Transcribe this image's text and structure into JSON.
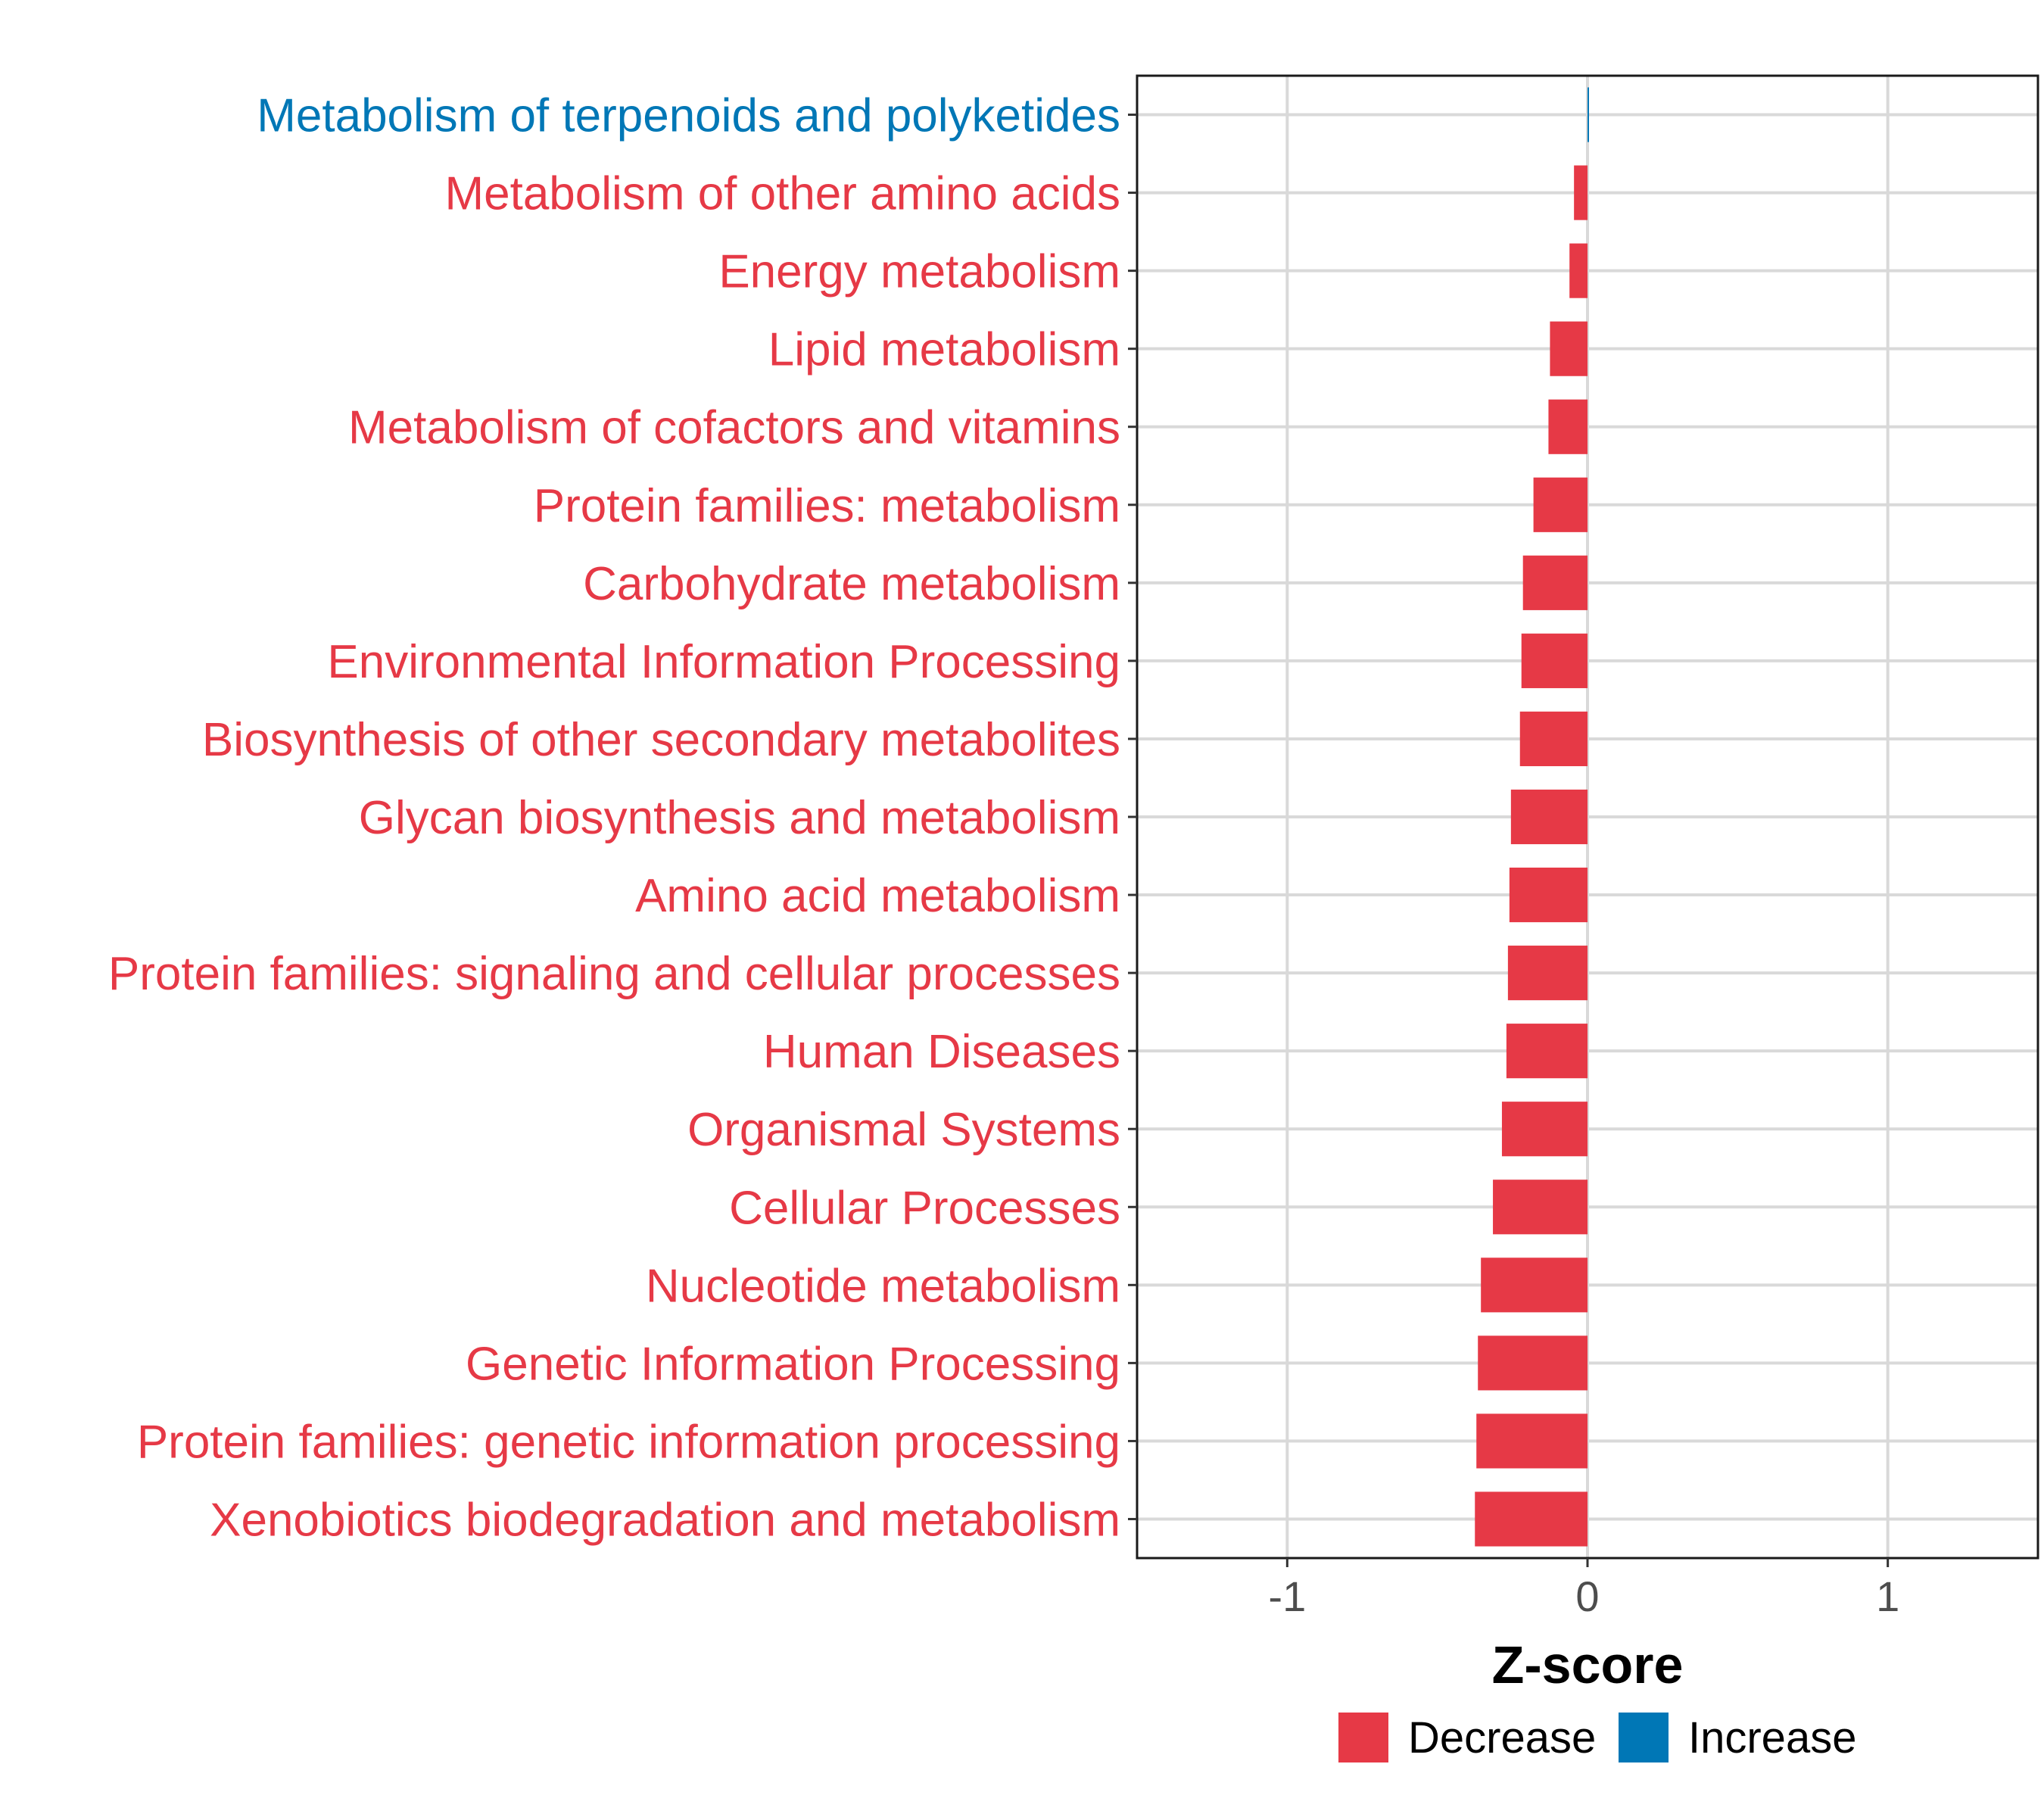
{
  "chart_data": {
    "type": "bar",
    "orientation": "horizontal",
    "xlabel": "Z-score",
    "xlim": [
      -1.5,
      1.5
    ],
    "xticks": [
      -1,
      0,
      1
    ],
    "xtick_labels": [
      "-1",
      "0",
      "1"
    ],
    "grid": true,
    "legend_position": "bottom",
    "legend": [
      {
        "label": "Decrease",
        "color": "#E63946"
      },
      {
        "label": "Increase",
        "color": "#0077B6"
      }
    ],
    "categories": [
      "Metabolism of terpenoids and polyketides",
      "Metabolism of other amino acids",
      "Energy metabolism",
      "Lipid metabolism",
      "Metabolism of cofactors and vitamins",
      "Protein families: metabolism",
      "Carbohydrate metabolism",
      "Environmental Information Processing",
      "Biosynthesis of other secondary metabolites",
      "Glycan biosynthesis and metabolism",
      "Amino acid metabolism",
      "Protein families: signaling and cellular processes",
      "Human Diseases",
      "Organismal Systems",
      "Cellular Processes",
      "Nucleotide metabolism",
      "Genetic Information Processing",
      "Protein families: genetic information processing",
      "Xenobiotics biodegradation and metabolism"
    ],
    "values": [
      0.005,
      -0.045,
      -0.06,
      -0.125,
      -0.13,
      -0.18,
      -0.215,
      -0.22,
      -0.225,
      -0.255,
      -0.26,
      -0.265,
      -0.27,
      -0.285,
      -0.315,
      -0.355,
      -0.365,
      -0.37,
      -0.375
    ],
    "direction": [
      "Increase",
      "Decrease",
      "Decrease",
      "Decrease",
      "Decrease",
      "Decrease",
      "Decrease",
      "Decrease",
      "Decrease",
      "Decrease",
      "Decrease",
      "Decrease",
      "Decrease",
      "Decrease",
      "Decrease",
      "Decrease",
      "Decrease",
      "Decrease",
      "Decrease"
    ]
  }
}
